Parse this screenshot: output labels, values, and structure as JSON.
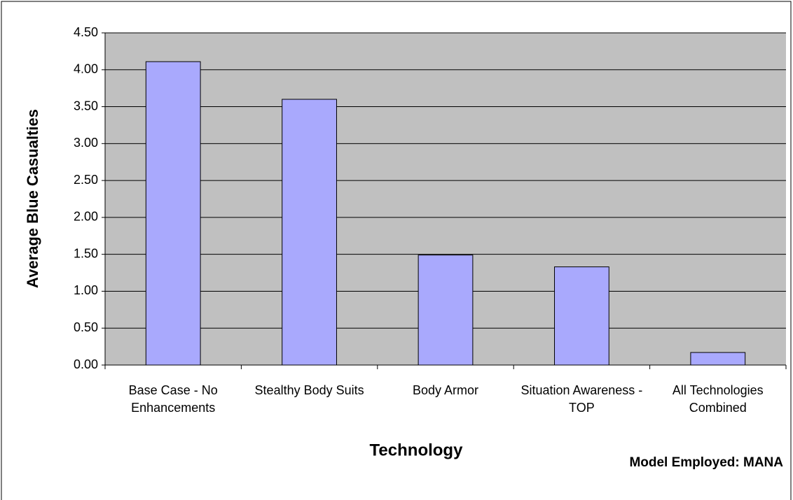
{
  "chart_data": {
    "type": "bar",
    "categories": [
      "Base Case - No Enhancements",
      "Stealthy Body Suits",
      "Body Armor",
      "Situation Awareness - TOP",
      "All Technologies Combined"
    ],
    "values": [
      4.11,
      3.6,
      1.49,
      1.33,
      0.17
    ],
    "color": "#a9a9fd",
    "x_label": "Technology",
    "y_label": "Average Blue Casualties",
    "annotation": "Model Employed: MANA",
    "ylim": [
      0,
      4.5
    ],
    "yticks": [
      {
        "value": 0,
        "label": "0.00"
      },
      {
        "value": 0.5,
        "label": "0.50"
      },
      {
        "value": 1,
        "label": "1.00"
      },
      {
        "value": 1.5,
        "label": "1.50"
      },
      {
        "value": 2,
        "label": "2.00"
      },
      {
        "value": 2.5,
        "label": "2.50"
      },
      {
        "value": 3,
        "label": "3.00"
      },
      {
        "value": 3.5,
        "label": "3.50"
      },
      {
        "value": 4,
        "label": "4.00"
      },
      {
        "value": 4.5,
        "label": "4.50"
      }
    ],
    "grid": true
  }
}
